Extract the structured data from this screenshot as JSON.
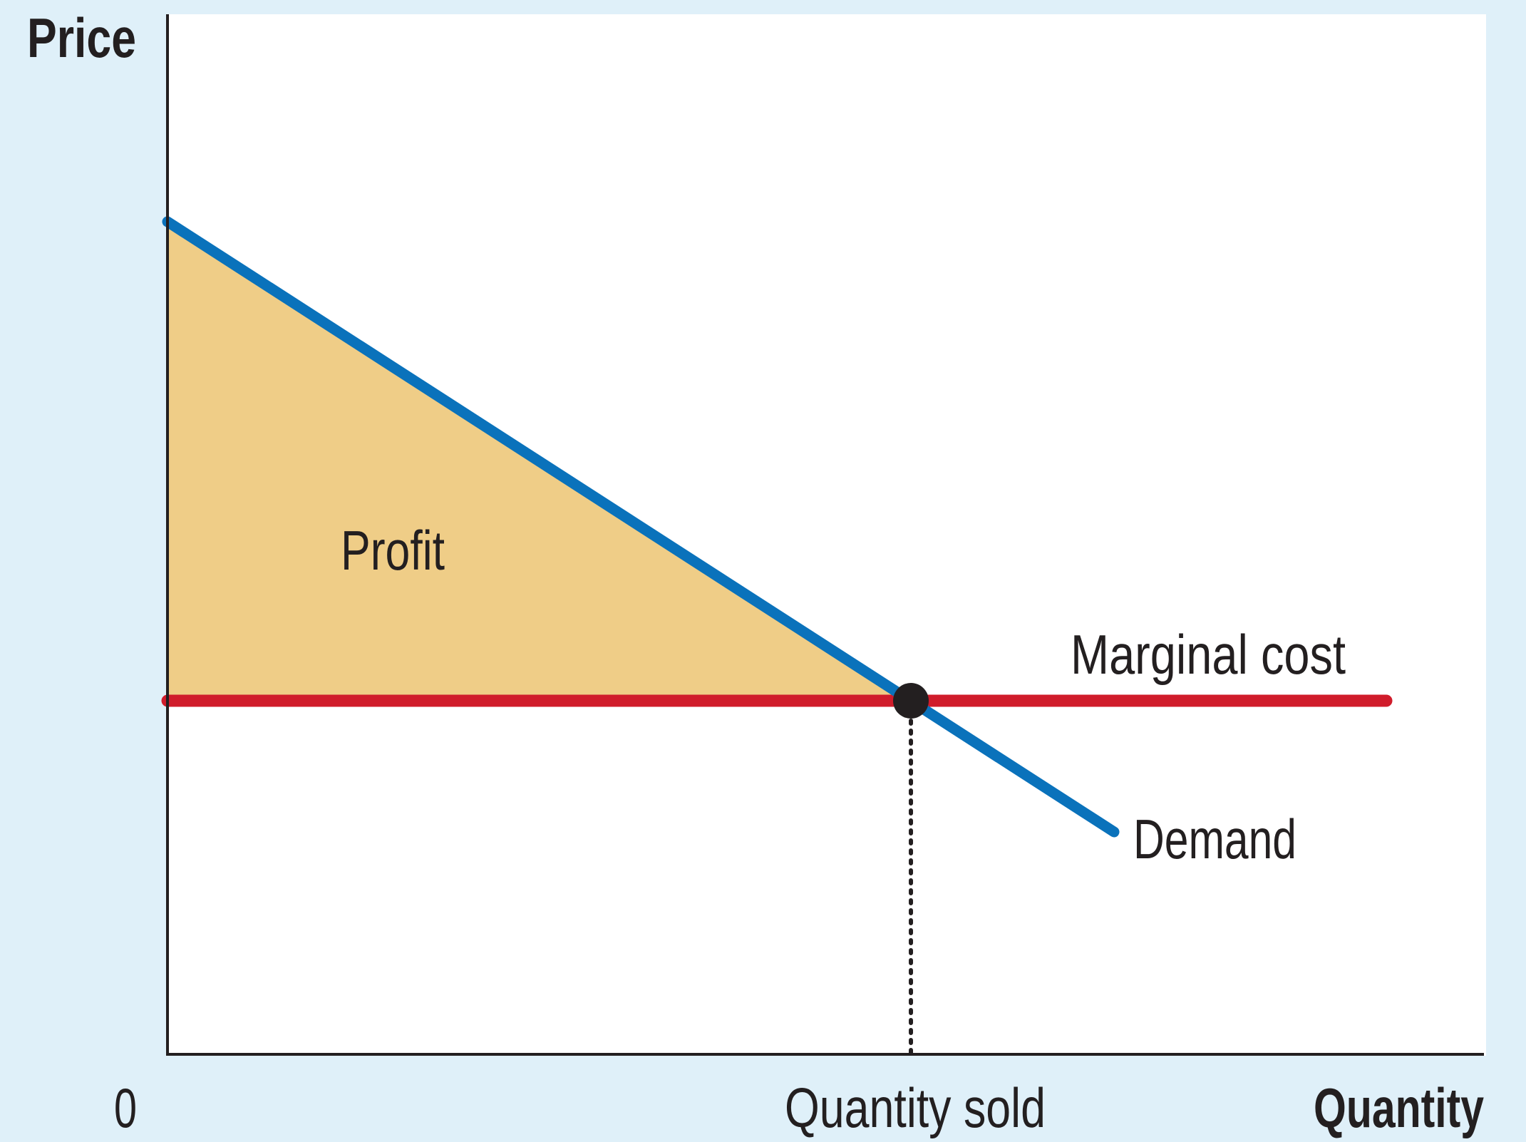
{
  "axes": {
    "y_label": "Price",
    "x_label": "Quantity",
    "origin": "0",
    "x_marker": "Quantity sold"
  },
  "labels": {
    "area": "Profit",
    "cost_curve": "Marginal cost",
    "demand_curve": "Demand"
  }
}
